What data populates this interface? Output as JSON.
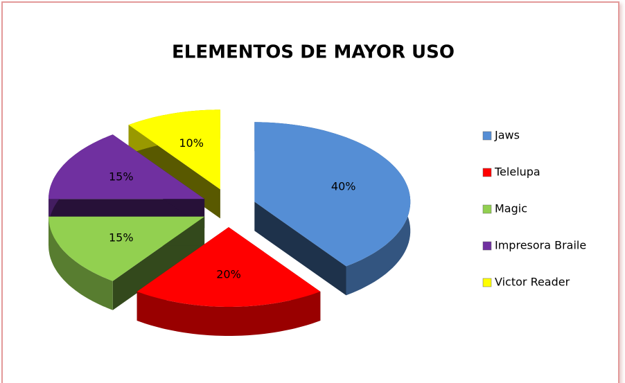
{
  "chart_data": {
    "type": "pie",
    "title": "ELEMENTOS DE MAYOR USO",
    "categories": [
      "Jaws",
      "Telelupa",
      "Magic",
      "Impresora Braile",
      "Victor Reader"
    ],
    "values": [
      40,
      20,
      15,
      15,
      10
    ],
    "value_labels": [
      "40%",
      "20%",
      "15%",
      "15%",
      "10%"
    ],
    "colors": [
      "#558ed5",
      "#ff0000",
      "#92d050",
      "#7030a0",
      "#ffff00"
    ],
    "legend": "right"
  }
}
